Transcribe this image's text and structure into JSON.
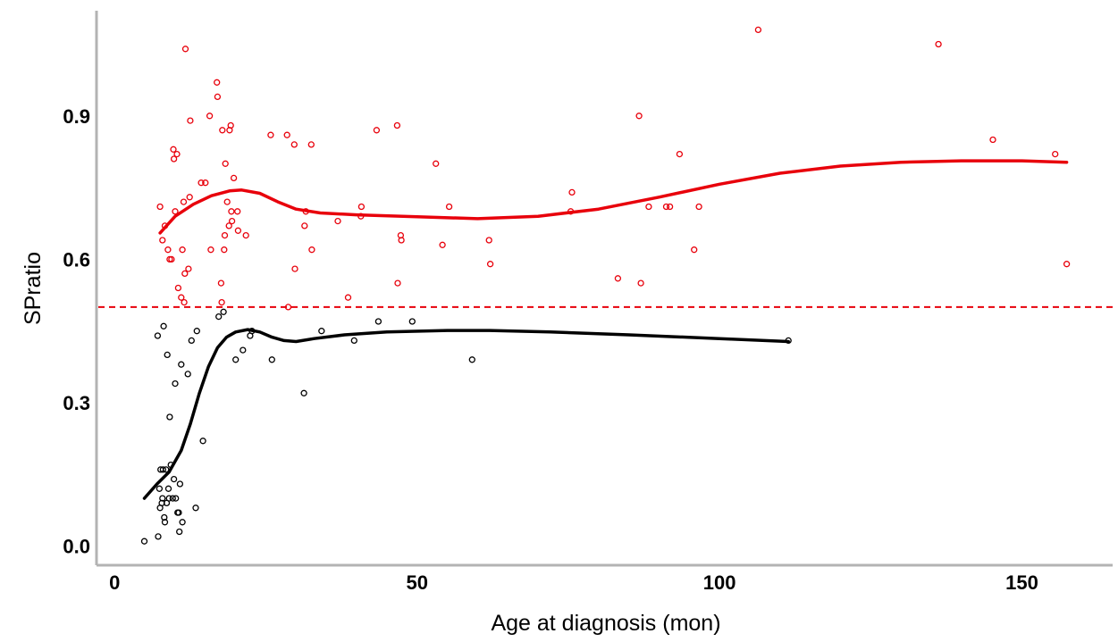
{
  "chart_data": {
    "type": "scatter",
    "title": "",
    "xlabel": "Age at diagnosis (mon)",
    "ylabel": "SPratio",
    "xlim": [
      -3,
      165
    ],
    "ylim": [
      -0.04,
      1.12
    ],
    "x_ticks": [
      0,
      50,
      100,
      150
    ],
    "y_ticks": [
      0.0,
      0.3,
      0.6,
      0.9
    ],
    "x_tick_labels": [
      "0",
      "50",
      "100",
      "150"
    ],
    "y_tick_labels": [
      "0.0",
      "0.3",
      "0.6",
      "0.9"
    ],
    "grid": false,
    "legend": "none",
    "reference_line": {
      "y": 0.5,
      "style": "dashed",
      "color": "#e8000b"
    },
    "series": [
      {
        "color": "#e8000b",
        "marker": "open-circle",
        "points": [
          [
            7.5,
            0.71
          ],
          [
            7.9,
            0.64
          ],
          [
            8.3,
            0.67
          ],
          [
            8.8,
            0.62
          ],
          [
            9.1,
            0.6
          ],
          [
            9.4,
            0.6
          ],
          [
            9.7,
            0.83
          ],
          [
            9.8,
            0.81
          ],
          [
            10,
            0.7
          ],
          [
            10.3,
            0.82
          ],
          [
            10.5,
            0.54
          ],
          [
            11,
            0.52
          ],
          [
            11.2,
            0.62
          ],
          [
            11.4,
            0.72
          ],
          [
            11.5,
            0.51
          ],
          [
            11.6,
            0.57
          ],
          [
            11.7,
            1.04
          ],
          [
            12.2,
            0.58
          ],
          [
            12.4,
            0.73
          ],
          [
            12.5,
            0.89
          ],
          [
            14.3,
            0.76
          ],
          [
            15,
            0.76
          ],
          [
            15.7,
            0.9
          ],
          [
            15.9,
            0.62
          ],
          [
            16.9,
            0.97
          ],
          [
            17,
            0.94
          ],
          [
            17.6,
            0.55
          ],
          [
            17.7,
            0.51
          ],
          [
            17.8,
            0.87
          ],
          [
            18.1,
            0.62
          ],
          [
            18.2,
            0.65
          ],
          [
            18.3,
            0.8
          ],
          [
            18.6,
            0.72
          ],
          [
            18.9,
            0.67
          ],
          [
            19,
            0.87
          ],
          [
            19.2,
            0.88
          ],
          [
            19.3,
            0.7
          ],
          [
            19.4,
            0.68
          ],
          [
            19.7,
            0.77
          ],
          [
            20.3,
            0.7
          ],
          [
            20.4,
            0.66
          ],
          [
            21.7,
            0.65
          ],
          [
            25.8,
            0.86
          ],
          [
            28.5,
            0.86
          ],
          [
            28.7,
            0.5
          ],
          [
            29.7,
            0.84
          ],
          [
            29.8,
            0.58
          ],
          [
            31.4,
            0.67
          ],
          [
            31.6,
            0.7
          ],
          [
            32.5,
            0.84
          ],
          [
            32.6,
            0.62
          ],
          [
            36.9,
            0.68
          ],
          [
            38.6,
            0.52
          ],
          [
            40.7,
            0.69
          ],
          [
            40.8,
            0.71
          ],
          [
            43.3,
            0.87
          ],
          [
            46.7,
            0.88
          ],
          [
            46.8,
            0.55
          ],
          [
            47.3,
            0.65
          ],
          [
            47.4,
            0.64
          ],
          [
            53.1,
            0.8
          ],
          [
            54.2,
            0.63
          ],
          [
            55.3,
            0.71
          ],
          [
            61.9,
            0.64
          ],
          [
            62.1,
            0.59
          ],
          [
            75.4,
            0.7
          ],
          [
            75.6,
            0.74
          ],
          [
            83.2,
            0.56
          ],
          [
            86.7,
            0.9
          ],
          [
            87,
            0.55
          ],
          [
            88.3,
            0.71
          ],
          [
            91.2,
            0.71
          ],
          [
            91.8,
            0.71
          ],
          [
            93.4,
            0.82
          ],
          [
            95.8,
            0.62
          ],
          [
            96.6,
            0.71
          ],
          [
            106.4,
            1.08
          ],
          [
            136.2,
            1.05
          ],
          [
            145.2,
            0.85
          ],
          [
            155.5,
            0.82
          ],
          [
            157.4,
            0.59
          ]
        ],
        "smooth": [
          [
            7.5,
            0.655
          ],
          [
            10,
            0.69
          ],
          [
            13,
            0.715
          ],
          [
            16,
            0.733
          ],
          [
            19,
            0.743
          ],
          [
            21,
            0.745
          ],
          [
            24,
            0.738
          ],
          [
            27,
            0.72
          ],
          [
            30,
            0.705
          ],
          [
            34,
            0.697
          ],
          [
            40,
            0.693
          ],
          [
            50,
            0.689
          ],
          [
            60,
            0.685
          ],
          [
            70,
            0.69
          ],
          [
            80,
            0.705
          ],
          [
            90,
            0.73
          ],
          [
            100,
            0.757
          ],
          [
            110,
            0.78
          ],
          [
            120,
            0.795
          ],
          [
            130,
            0.803
          ],
          [
            140,
            0.806
          ],
          [
            150,
            0.806
          ],
          [
            157.4,
            0.803
          ]
        ]
      },
      {
        "color": "#000000",
        "marker": "open-circle",
        "points": [
          [
            4.9,
            0.01
          ],
          [
            7.1,
            0.44
          ],
          [
            7.2,
            0.02
          ],
          [
            7.4,
            0.12
          ],
          [
            7.5,
            0.08
          ],
          [
            7.6,
            0.16
          ],
          [
            7.8,
            0.09
          ],
          [
            7.9,
            0.1
          ],
          [
            8,
            0.16
          ],
          [
            8.1,
            0.46
          ],
          [
            8.2,
            0.06
          ],
          [
            8.3,
            0.05
          ],
          [
            8.5,
            0.16
          ],
          [
            8.6,
            0.09
          ],
          [
            8.7,
            0.4
          ],
          [
            8.9,
            0.12
          ],
          [
            9,
            0.1
          ],
          [
            9.1,
            0.27
          ],
          [
            9.3,
            0.17
          ],
          [
            9.6,
            0.1
          ],
          [
            9.8,
            0.14
          ],
          [
            10,
            0.34
          ],
          [
            10.1,
            0.1
          ],
          [
            10.4,
            0.07
          ],
          [
            10.6,
            0.07
          ],
          [
            10.7,
            0.03
          ],
          [
            10.8,
            0.13
          ],
          [
            11,
            0.38
          ],
          [
            11.2,
            0.05
          ],
          [
            12.1,
            0.36
          ],
          [
            12.7,
            0.43
          ],
          [
            13.4,
            0.08
          ],
          [
            13.6,
            0.45
          ],
          [
            14.6,
            0.22
          ],
          [
            17.2,
            0.48
          ],
          [
            18,
            0.49
          ],
          [
            20,
            0.39
          ],
          [
            21.2,
            0.41
          ],
          [
            22.4,
            0.44
          ],
          [
            22.7,
            0.45
          ],
          [
            26,
            0.39
          ],
          [
            31.3,
            0.32
          ],
          [
            34.2,
            0.45
          ],
          [
            39.6,
            0.43
          ],
          [
            43.6,
            0.47
          ],
          [
            49.2,
            0.47
          ],
          [
            59.1,
            0.39
          ],
          [
            111.4,
            0.43
          ]
        ],
        "smooth": [
          [
            4.9,
            0.1
          ],
          [
            7,
            0.13
          ],
          [
            9,
            0.155
          ],
          [
            11,
            0.2
          ],
          [
            12.5,
            0.255
          ],
          [
            14,
            0.32
          ],
          [
            15.5,
            0.375
          ],
          [
            17,
            0.415
          ],
          [
            18.5,
            0.437
          ],
          [
            20,
            0.448
          ],
          [
            22,
            0.453
          ],
          [
            24,
            0.448
          ],
          [
            26,
            0.437
          ],
          [
            28,
            0.43
          ],
          [
            30,
            0.428
          ],
          [
            33,
            0.434
          ],
          [
            38,
            0.442
          ],
          [
            45,
            0.448
          ],
          [
            55,
            0.451
          ],
          [
            62,
            0.451
          ],
          [
            72,
            0.448
          ],
          [
            85,
            0.442
          ],
          [
            100,
            0.434
          ],
          [
            111.4,
            0.428
          ]
        ]
      }
    ]
  }
}
